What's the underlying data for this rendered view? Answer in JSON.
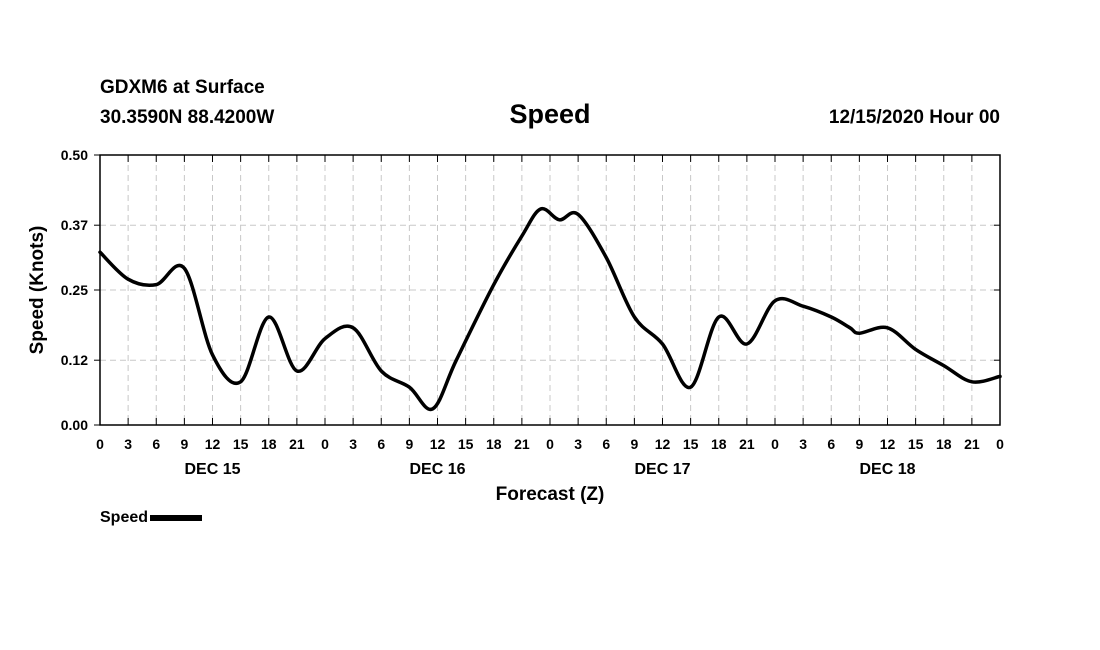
{
  "header": {
    "station": "GDXM6 at Surface",
    "coords": "30.3590N 88.4200W",
    "title": "Speed",
    "run": "12/15/2020 Hour 00"
  },
  "legend": {
    "label": "Speed",
    "color": "#000000"
  },
  "chart_data": {
    "type": "line",
    "title": "Speed",
    "xlabel": "Forecast (Z)",
    "ylabel": "Speed (Knots)",
    "x_unit": "forecast hour",
    "xlim": [
      0,
      96
    ],
    "ylim": [
      0,
      0.5
    ],
    "grid": true,
    "yticks": [
      0.0,
      0.12,
      0.25,
      0.37,
      0.5
    ],
    "ytick_labels": [
      "0.00",
      "0.12",
      "0.25",
      "0.37",
      "0.50"
    ],
    "xticks": [
      0,
      3,
      6,
      9,
      12,
      15,
      18,
      21,
      24,
      27,
      30,
      33,
      36,
      39,
      42,
      45,
      48,
      51,
      54,
      57,
      60,
      63,
      66,
      69,
      72,
      75,
      78,
      81,
      84,
      87,
      90,
      93,
      96
    ],
    "xtick_labels": [
      "0",
      "3",
      "6",
      "9",
      "12",
      "15",
      "18",
      "21",
      "0",
      "3",
      "6",
      "9",
      "12",
      "15",
      "18",
      "21",
      "0",
      "3",
      "6",
      "9",
      "12",
      "15",
      "18",
      "21",
      "0",
      "3",
      "6",
      "9",
      "12",
      "15",
      "18",
      "21",
      "0"
    ],
    "day_labels": [
      {
        "label": "DEC 15",
        "x": 12
      },
      {
        "label": "DEC 16",
        "x": 36
      },
      {
        "label": "DEC 17",
        "x": 60
      },
      {
        "label": "DEC 18",
        "x": 84
      }
    ],
    "series": [
      {
        "name": "Speed",
        "color": "#000000",
        "x": [
          0,
          3,
          6,
          9,
          12,
          15,
          18,
          21,
          24,
          27,
          30,
          33,
          35.5,
          38,
          42,
          45,
          47,
          49,
          51,
          54,
          57,
          60,
          63,
          66,
          69,
          72,
          75,
          78,
          80,
          81,
          84,
          87,
          90,
          93,
          96
        ],
        "y": [
          0.32,
          0.27,
          0.26,
          0.29,
          0.13,
          0.08,
          0.2,
          0.1,
          0.16,
          0.18,
          0.1,
          0.07,
          0.03,
          0.12,
          0.26,
          0.35,
          0.4,
          0.38,
          0.39,
          0.31,
          0.2,
          0.15,
          0.07,
          0.2,
          0.15,
          0.23,
          0.22,
          0.2,
          0.18,
          0.17,
          0.18,
          0.14,
          0.11,
          0.08,
          0.09
        ]
      }
    ]
  }
}
